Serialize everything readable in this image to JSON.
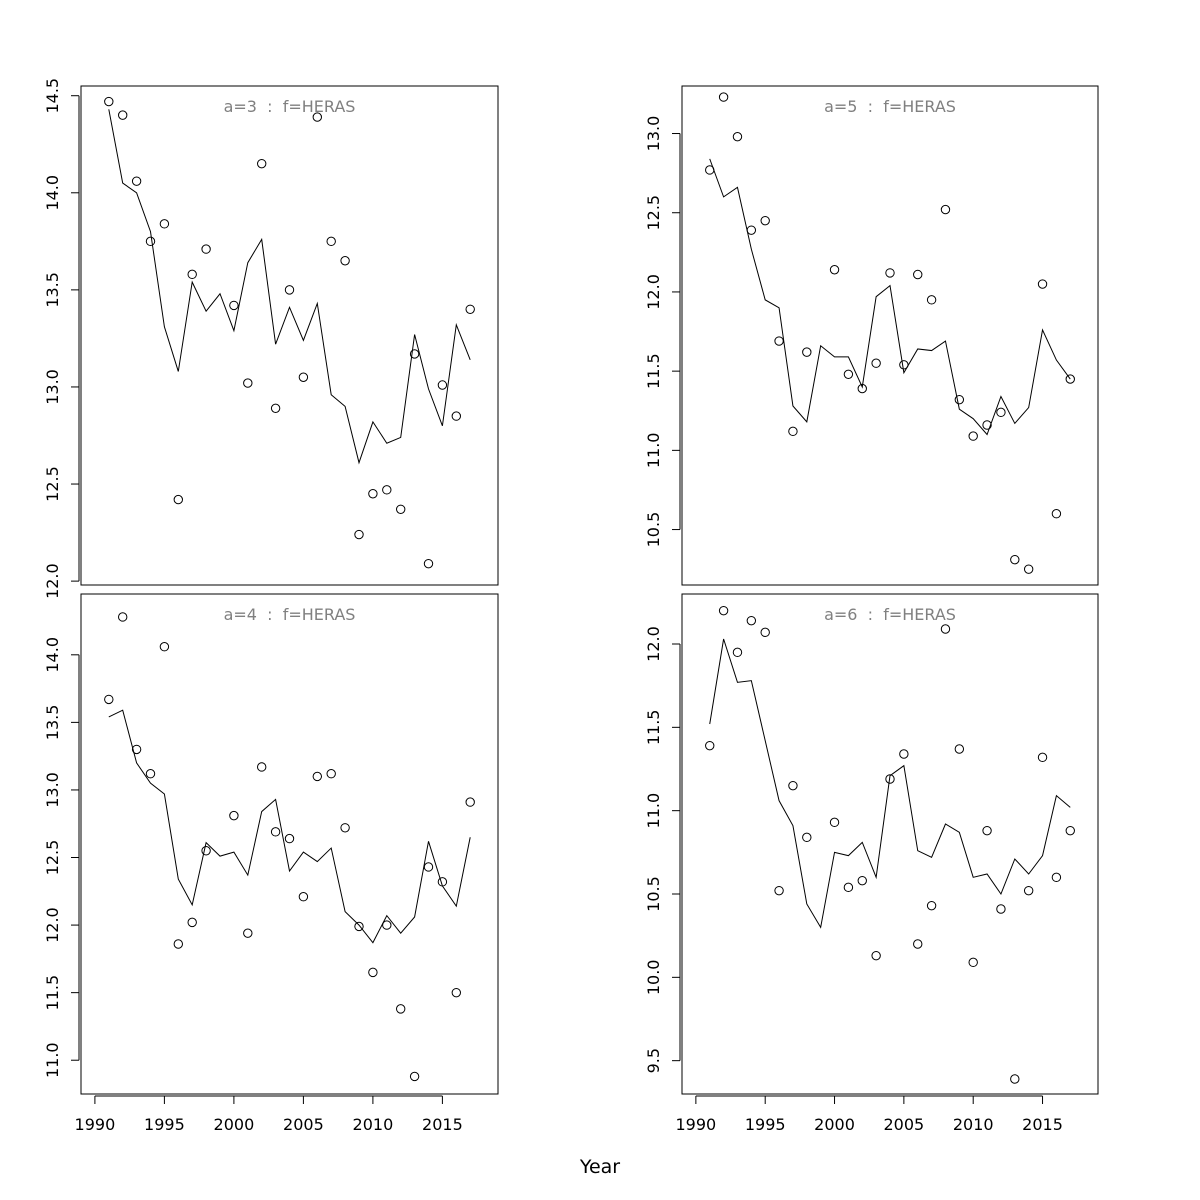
{
  "chart_data": {
    "type": "scatter",
    "xlabel": "Year",
    "x_ticks": [
      1990,
      1995,
      2000,
      2005,
      2010,
      2015
    ],
    "xlim": [
      1989,
      2019
    ],
    "x": [
      1991,
      1992,
      1993,
      1994,
      1995,
      1996,
      1997,
      1998,
      1999,
      2000,
      2001,
      2002,
      2003,
      2004,
      2005,
      2006,
      2007,
      2008,
      2009,
      2010,
      2011,
      2012,
      2013,
      2014,
      2015,
      2016,
      2017
    ],
    "panels": [
      {
        "label": "a=3  :  f=HERAS",
        "position": "top-left",
        "ylim": [
          11.98,
          14.55
        ],
        "y_ticks": [
          12.0,
          12.5,
          13.0,
          13.5,
          14.0,
          14.5
        ],
        "y_tick_labels": [
          "12.0",
          "12.5",
          "13.0",
          "13.5",
          "14.0",
          "14.5"
        ],
        "series": [
          {
            "kind": "points",
            "x": [
              1991,
              1992,
              1993,
              1994,
              1995,
              1996,
              1997,
              1998,
              2000,
              2001,
              2002,
              2003,
              2004,
              2005,
              2006,
              2007,
              2008,
              2009,
              2010,
              2011,
              2012,
              2013,
              2014,
              2015,
              2016,
              2017
            ],
            "values": [
              14.47,
              14.4,
              14.06,
              13.75,
              13.84,
              12.42,
              13.58,
              13.71,
              13.42,
              13.02,
              14.15,
              12.89,
              13.5,
              13.05,
              14.39,
              13.75,
              13.65,
              12.24,
              12.45,
              12.47,
              12.37,
              13.17,
              12.09,
              13.01,
              12.85,
              13.4
            ]
          },
          {
            "kind": "line",
            "values": [
              14.43,
              14.05,
              14.0,
              13.8,
              13.31,
              13.08,
              13.54,
              13.39,
              13.48,
              13.29,
              13.64,
              13.76,
              13.22,
              13.41,
              13.24,
              13.43,
              12.96,
              12.9,
              12.61,
              12.82,
              12.71,
              12.74,
              13.27,
              12.99,
              12.8,
              13.32,
              13.14
            ]
          }
        ]
      },
      {
        "label": "a=5  :  f=HERAS",
        "position": "top-right",
        "ylim": [
          10.15,
          13.3
        ],
        "y_ticks": [
          10.5,
          11.0,
          11.5,
          12.0,
          12.5,
          13.0
        ],
        "y_tick_labels": [
          "10.5",
          "11.0",
          "11.5",
          "12.0",
          "12.5",
          "13.0"
        ],
        "series": [
          {
            "kind": "points",
            "x": [
              1991,
              1992,
              1993,
              1994,
              1995,
              1996,
              1997,
              1998,
              2000,
              2001,
              2002,
              2003,
              2004,
              2005,
              2006,
              2007,
              2008,
              2009,
              2010,
              2011,
              2012,
              2013,
              2014,
              2015,
              2016,
              2017
            ],
            "values": [
              12.77,
              13.23,
              12.98,
              12.39,
              12.45,
              11.69,
              11.12,
              11.62,
              12.14,
              11.48,
              11.39,
              11.55,
              12.12,
              11.54,
              12.11,
              11.95,
              12.52,
              11.32,
              11.09,
              11.16,
              11.24,
              10.31,
              10.25,
              12.05,
              10.6,
              11.45
            ]
          },
          {
            "kind": "line",
            "values": [
              12.84,
              12.6,
              12.66,
              12.27,
              11.95,
              11.9,
              11.28,
              11.18,
              11.66,
              11.59,
              11.59,
              11.4,
              11.97,
              12.04,
              11.49,
              11.64,
              11.63,
              11.69,
              11.26,
              11.2,
              11.1,
              11.34,
              11.17,
              11.27,
              11.76,
              11.57,
              11.45
            ]
          }
        ]
      },
      {
        "label": "a=4  :  f=HERAS",
        "position": "bottom-left",
        "ylim": [
          10.75,
          14.45
        ],
        "y_ticks": [
          11.0,
          11.5,
          12.0,
          12.5,
          13.0,
          13.5,
          14.0
        ],
        "y_tick_labels": [
          "11.0",
          "11.5",
          "12.0",
          "12.5",
          "13.0",
          "13.5",
          "14.0"
        ],
        "series": [
          {
            "kind": "points",
            "x": [
              1991,
              1992,
              1993,
              1994,
              1995,
              1996,
              1997,
              1998,
              2000,
              2001,
              2002,
              2003,
              2004,
              2005,
              2006,
              2007,
              2008,
              2009,
              2010,
              2011,
              2012,
              2013,
              2014,
              2015,
              2016,
              2017
            ],
            "values": [
              13.67,
              14.28,
              13.3,
              13.12,
              14.06,
              11.86,
              12.02,
              12.55,
              12.81,
              11.94,
              13.17,
              12.69,
              12.64,
              12.21,
              13.1,
              13.12,
              12.72,
              11.99,
              11.65,
              12.0,
              11.38,
              10.88,
              12.43,
              12.32,
              11.5,
              12.91
            ]
          },
          {
            "kind": "line",
            "values": [
              13.54,
              13.59,
              13.2,
              13.05,
              12.97,
              12.34,
              12.15,
              12.61,
              12.51,
              12.54,
              12.37,
              12.84,
              12.93,
              12.4,
              12.54,
              12.47,
              12.57,
              12.1,
              12.0,
              11.87,
              12.07,
              11.94,
              12.06,
              12.62,
              12.29,
              12.14,
              12.65
            ]
          }
        ]
      },
      {
        "label": "a=6  :  f=HERAS",
        "position": "bottom-right",
        "ylim": [
          9.3,
          12.3
        ],
        "y_ticks": [
          9.5,
          10.0,
          10.5,
          11.0,
          11.5,
          12.0
        ],
        "y_tick_labels": [
          "9.5",
          "10.0",
          "10.5",
          "11.0",
          "11.5",
          "12.0"
        ],
        "series": [
          {
            "kind": "points",
            "x": [
              1991,
              1992,
              1993,
              1994,
              1995,
              1996,
              1997,
              1998,
              2000,
              2001,
              2002,
              2003,
              2004,
              2005,
              2006,
              2007,
              2008,
              2009,
              2010,
              2011,
              2012,
              2013,
              2014,
              2015,
              2016,
              2017
            ],
            "values": [
              11.39,
              12.2,
              11.95,
              12.14,
              12.07,
              10.52,
              11.15,
              10.84,
              10.93,
              10.54,
              10.58,
              10.13,
              11.19,
              11.34,
              10.2,
              10.43,
              12.09,
              11.37,
              10.09,
              10.88,
              10.41,
              9.39,
              10.52,
              11.32,
              10.6,
              10.88
            ]
          },
          {
            "kind": "line",
            "values": [
              11.52,
              12.03,
              11.77,
              11.78,
              11.42,
              11.06,
              10.91,
              10.44,
              10.3,
              10.75,
              10.73,
              10.81,
              10.6,
              11.21,
              11.27,
              10.76,
              10.72,
              10.92,
              10.87,
              10.6,
              10.62,
              10.5,
              10.71,
              10.62,
              10.73,
              11.09,
              11.02
            ]
          }
        ]
      }
    ]
  }
}
